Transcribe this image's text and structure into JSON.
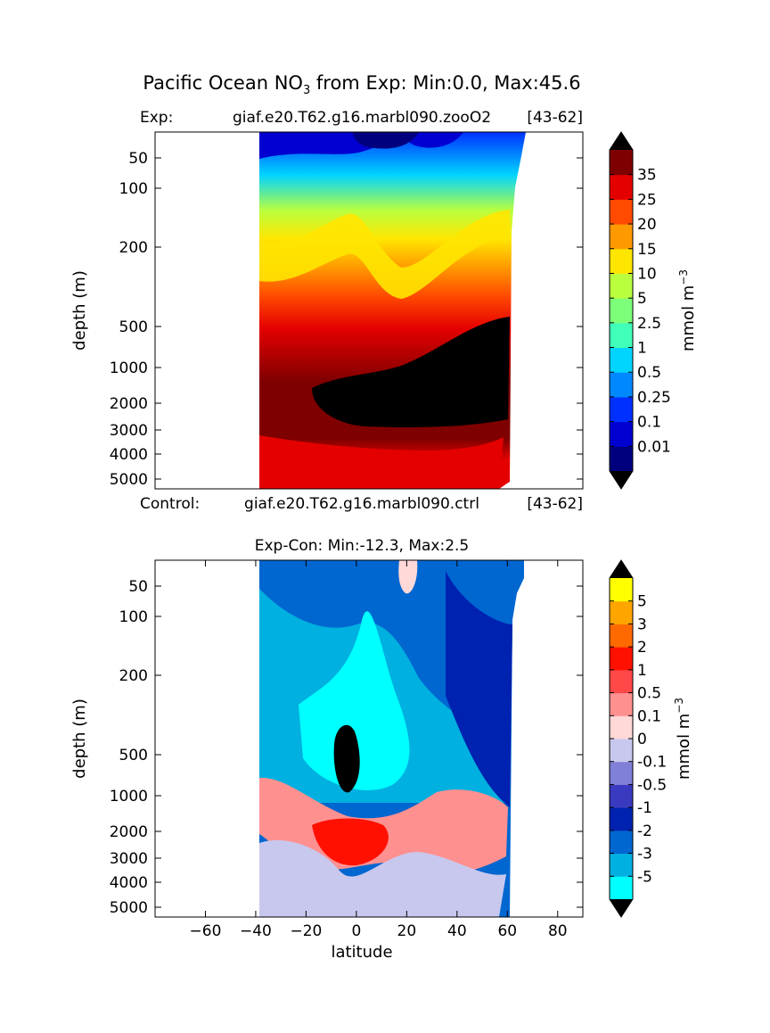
{
  "figure": {
    "title_prefix": "Pacific Ocean NO",
    "title_sub": "3",
    "title_suffix": " from Exp: Min:0.0, Max:45.6"
  },
  "chart_data": [
    {
      "type": "heatmap",
      "exp_label": "Exp:",
      "exp_run": "giaf.e20.T62.g16.marbl090.zooO2",
      "exp_years": "[43-62]",
      "control_label": "Control:",
      "control_run": "giaf.e20.T62.g16.marbl090.ctrl",
      "control_years": "[43-62]",
      "xlabel": "",
      "ylabel": "depth (m)",
      "xlim": [
        -80,
        90
      ],
      "ylim": [
        5500,
        0
      ],
      "yticks": [
        "50",
        "100",
        "200",
        "500",
        "1000",
        "2000",
        "3000",
        "4000",
        "5000"
      ],
      "colorbar": {
        "label_main": "mmol m",
        "label_sup": "−3",
        "levels": [
          "0.01",
          "0.1",
          "0.25",
          "0.5",
          "1",
          "2.5",
          "5",
          "10",
          "15",
          "20",
          "25",
          "35"
        ],
        "colors": [
          "#00007f",
          "#0000d0",
          "#0030ff",
          "#0088ff",
          "#00d4ff",
          "#40ffb8",
          "#7dff7a",
          "#b9ff3e",
          "#ffe600",
          "#ff9900",
          "#ff4a00",
          "#e50000",
          "#7f0000"
        ],
        "extend_low": "#000000",
        "extend_high": "#000000"
      },
      "data_extent_lat": [
        -35,
        67
      ],
      "max_region_color": "#000000"
    },
    {
      "type": "heatmap",
      "title": "Exp-Con: Min:-12.3, Max:2.5",
      "xlabel": "latitude",
      "ylabel": "depth (m)",
      "xlim": [
        -80,
        90
      ],
      "xticks": [
        "−60",
        "−40",
        "−20",
        "0",
        "20",
        "40",
        "60",
        "80"
      ],
      "ylim": [
        5500,
        0
      ],
      "yticks": [
        "50",
        "100",
        "200",
        "500",
        "1000",
        "2000",
        "3000",
        "4000",
        "5000"
      ],
      "colorbar": {
        "label_main": "mmol m",
        "label_sup": "−3",
        "levels": [
          "-5",
          "-3",
          "-2",
          "-1",
          "-0.5",
          "-0.1",
          "0",
          "0.1",
          "0.5",
          "1",
          "2",
          "3",
          "5"
        ],
        "colors": [
          "#00ffff",
          "#00b0e0",
          "#0066d0",
          "#0022b0",
          "#3a3ac0",
          "#8080d8",
          "#c8c8ee",
          "#ffd8d8",
          "#ff9090",
          "#ff4848",
          "#ff1000",
          "#ff6a00",
          "#ffa500",
          "#ffff00"
        ],
        "extend_low": "#000000",
        "extend_high": "#000000"
      },
      "data_extent_lat": [
        -35,
        67
      ]
    }
  ]
}
